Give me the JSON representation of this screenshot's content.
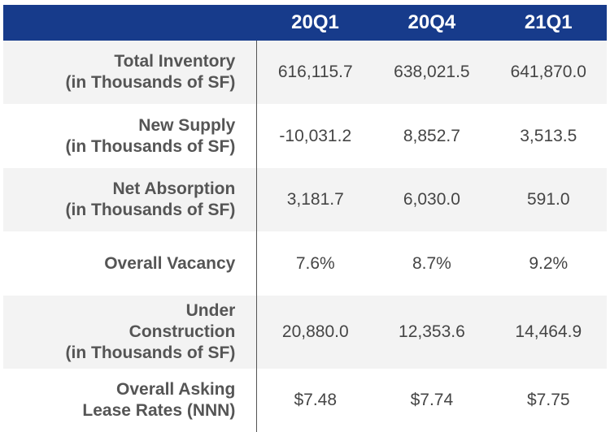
{
  "table": {
    "columns": [
      "",
      "20Q1",
      "20Q4",
      "21Q1"
    ],
    "rows": [
      {
        "label": [
          "Total Inventory",
          "(in Thousands of SF)"
        ],
        "values": [
          "616,115.7",
          "638,021.5",
          "641,870.0"
        ]
      },
      {
        "label": [
          "New Supply",
          "(in Thousands of SF)"
        ],
        "values": [
          "-10,031.2",
          "8,852.7",
          "3,513.5"
        ]
      },
      {
        "label": [
          "Net Absorption",
          "(in Thousands of SF)"
        ],
        "values": [
          "3,181.7",
          "6,030.0",
          "591.0"
        ]
      },
      {
        "label": [
          "Overall Vacancy"
        ],
        "values": [
          "7.6%",
          "8.7%",
          "9.2%"
        ]
      },
      {
        "label": [
          "Under",
          "Construction",
          "(in Thousands of SF)"
        ],
        "values": [
          "20,880.0",
          "12,353.6",
          "14,464.9"
        ]
      },
      {
        "label": [
          "Overall Asking",
          "Lease Rates (NNN)"
        ],
        "values": [
          "$7.48",
          "$7.74",
          "$7.75"
        ]
      }
    ]
  },
  "colors": {
    "header_bg": "#173b8b",
    "header_text": "#ffffff",
    "shaded_row": "#f3f3f3",
    "label_text": "#555555",
    "value_text": "#454545"
  }
}
